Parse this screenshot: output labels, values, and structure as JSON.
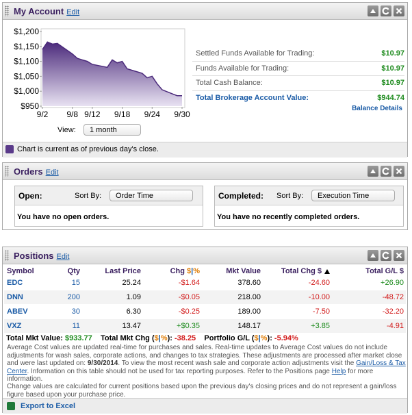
{
  "account": {
    "title": "My Account",
    "edit": "Edit",
    "view_label": "View:",
    "view_option": "1 month",
    "balances": [
      {
        "label": "Settled Funds Available for Trading:",
        "value": "$10.97"
      },
      {
        "label": "Funds Available for Trading:",
        "value": "$10.97"
      },
      {
        "label": "Total Cash Balance:",
        "value": "$10.97"
      },
      {
        "label": "Total Brokerage Account Value:",
        "value": "$944.74"
      }
    ],
    "balance_details": "Balance Details",
    "footnote": "Chart is current as of previous day's close."
  },
  "chart_data": {
    "type": "area",
    "x": [
      2,
      3,
      4,
      5,
      8,
      9,
      10,
      11,
      12,
      15,
      16,
      17,
      18,
      19,
      22,
      23,
      24,
      25,
      26,
      29,
      30
    ],
    "values": [
      1140,
      1165,
      1158,
      1160,
      1125,
      1110,
      1105,
      1100,
      1090,
      1080,
      1105,
      1095,
      1100,
      1075,
      1060,
      1045,
      1050,
      1025,
      1005,
      985,
      985
    ],
    "color": "#4b2a7b",
    "xlim": [
      2,
      30
    ],
    "xticks": [
      {
        "value": 2,
        "label": "9/2"
      },
      {
        "value": 8,
        "label": "9/8"
      },
      {
        "value": 12,
        "label": "9/12"
      },
      {
        "value": 18,
        "label": "9/18"
      },
      {
        "value": 24,
        "label": "9/24"
      },
      {
        "value": 30,
        "label": "9/30"
      }
    ],
    "ylim": [
      950,
      1200
    ],
    "yticks": [
      {
        "value": 950,
        "label": "$950"
      },
      {
        "value": 1000,
        "label": "$1,000"
      },
      {
        "value": 1050,
        "label": "$1,050"
      },
      {
        "value": 1100,
        "label": "$1,100"
      },
      {
        "value": 1150,
        "label": "$1,150"
      },
      {
        "value": 1200,
        "label": "$1,200"
      }
    ]
  },
  "orders": {
    "title": "Orders",
    "edit": "Edit",
    "open": {
      "label": "Open:",
      "sort_label": "Sort By:",
      "sort_option": "Order Time",
      "message": "You have no open orders."
    },
    "completed": {
      "label": "Completed:",
      "sort_label": "Sort By:",
      "sort_option": "Execution Time",
      "message": "You have no recently completed orders."
    }
  },
  "positions": {
    "title": "Positions",
    "edit": "Edit",
    "columns": [
      "Symbol",
      "Qty",
      "Last Price",
      {
        "label": "Chg",
        "parts": [
          "$",
          "|",
          "%"
        ]
      },
      "Mkt Value",
      "Total Chg $",
      "Total G/L $"
    ],
    "rows": [
      [
        "EDC",
        "15",
        "25.24",
        "-$1.64",
        "378.60",
        "-24.60",
        "+26.90"
      ],
      [
        "DNN",
        "200",
        "1.09",
        "-$0.05",
        "218.00",
        "-10.00",
        "-48.72"
      ],
      [
        "ABEV",
        "30",
        "6.30",
        "-$0.25",
        "189.00",
        "-7.50",
        "-32.20"
      ],
      [
        "VXZ",
        "11",
        "13.47",
        "+$0.35",
        "148.17",
        "+3.85",
        "-4.91"
      ]
    ],
    "totals": {
      "mkt_value_label": "Total Mkt Value:",
      "mkt_value": "$933.77",
      "mkt_chg_label": "Total Mkt Chg (",
      "mkt_chg_parts": [
        "$",
        "|",
        "%"
      ],
      "mkt_chg_close": "):",
      "mkt_chg": "-38.25",
      "gl_label": "Portfolio G/L (",
      "gl_parts": [
        "$",
        "|",
        "%"
      ],
      "gl_close": "):",
      "gl": "-5.94%"
    },
    "note1": [
      "Average Cost values are updated real-time for purchases and sales. Real-time updates to Average Cost values do not include adjustments for wash sales, corporate actions, and changes to tax strategies. These adjustments are processed after market close and were last updated on: ",
      "9/30/2014",
      ". To view the most recent wash sale and corporate action adjustments visit the ",
      "Gain/Loss & Tax Center",
      ". Information on this table should not be used for tax reporting purposes. Refer to the Positions page ",
      "Help",
      " for more information."
    ],
    "note2": "Change values are calculated for current positions based upon the previous day's closing prices and do not represent a gain/loss figure based upon your purchase price.",
    "export": "Export to Excel"
  }
}
